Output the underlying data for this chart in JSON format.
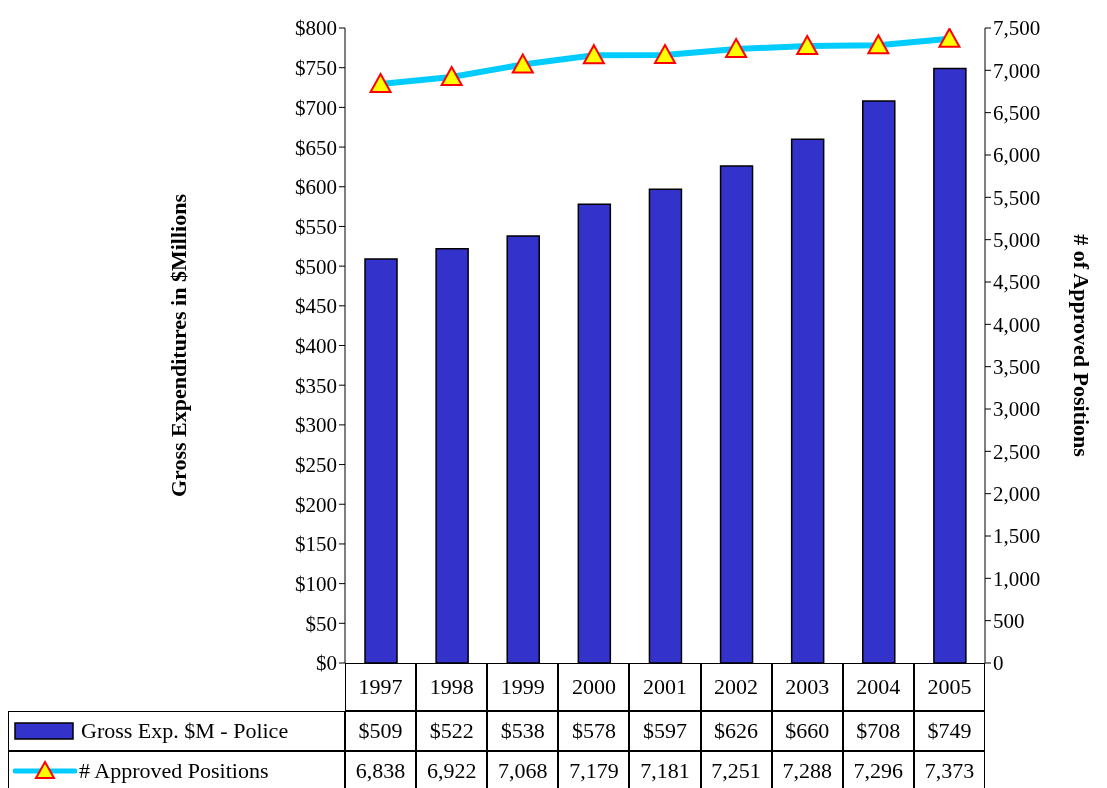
{
  "chart_data": {
    "type": "bar",
    "ylabel": "Gross Expenditures in $Millions",
    "y2label": "# of Approved Positions",
    "categories": [
      "1997",
      "1998",
      "1999",
      "2000",
      "2001",
      "2002",
      "2003",
      "2004",
      "2005"
    ],
    "series": [
      {
        "name": "Gross Exp. $M - Police",
        "color": "#3333cc",
        "values": [
          509,
          522,
          538,
          578,
          597,
          626,
          660,
          708,
          749
        ],
        "value_labels": [
          "$509",
          "$522",
          "$538",
          "$578",
          "$597",
          "$626",
          "$660",
          "$708",
          "$749"
        ]
      },
      {
        "name": "# Approved Positions",
        "type": "line",
        "axis": "y2",
        "color": "#00ccff",
        "marker": "triangle",
        "values": [
          6838,
          6922,
          7068,
          7179,
          7181,
          7251,
          7288,
          7296,
          7373
        ],
        "value_labels": [
          "6,838",
          "6,922",
          "7,068",
          "7,179",
          "7,181",
          "7,251",
          "7,288",
          "7,296",
          "7,373"
        ]
      }
    ],
    "ylim": [
      0,
      800
    ],
    "yticks": [
      {
        "value": 0,
        "label": "$0"
      },
      {
        "value": 50,
        "label": "$50"
      },
      {
        "value": 100,
        "label": "$100"
      },
      {
        "value": 150,
        "label": "$150"
      },
      {
        "value": 200,
        "label": "$200"
      },
      {
        "value": 250,
        "label": "$250"
      },
      {
        "value": 300,
        "label": "$300"
      },
      {
        "value": 350,
        "label": "$350"
      },
      {
        "value": 400,
        "label": "$400"
      },
      {
        "value": 450,
        "label": "$450"
      },
      {
        "value": 500,
        "label": "$500"
      },
      {
        "value": 550,
        "label": "$550"
      },
      {
        "value": 600,
        "label": "$600"
      },
      {
        "value": 650,
        "label": "$650"
      },
      {
        "value": 700,
        "label": "$700"
      },
      {
        "value": 750,
        "label": "$750"
      },
      {
        "value": 800,
        "label": "$800"
      }
    ],
    "y2lim": [
      0,
      7500
    ],
    "y2ticks": [
      0,
      {
        "value": 500,
        "label": "500"
      },
      {
        "value": 1000,
        "label": "1,000"
      },
      {
        "value": 1500,
        "label": "1,500"
      },
      {
        "value": 2000,
        "label": "2,000"
      },
      {
        "value": 2500,
        "label": "2,500"
      },
      {
        "value": 3000,
        "label": "3,000"
      },
      {
        "value": 3500,
        "label": "3,500"
      },
      {
        "value": 4000,
        "label": "4,000"
      },
      {
        "value": 4500,
        "label": "4,500"
      },
      {
        "value": 5000,
        "label": "5,000"
      },
      {
        "value": 5500,
        "label": "5,500"
      },
      {
        "value": 6000,
        "label": "6,000"
      },
      {
        "value": 6500,
        "label": "6,500"
      },
      {
        "value": 7000,
        "label": "7,000"
      },
      {
        "value": 7500,
        "label": "7,500"
      }
    ],
    "legend": "bottom left",
    "grid": false
  }
}
